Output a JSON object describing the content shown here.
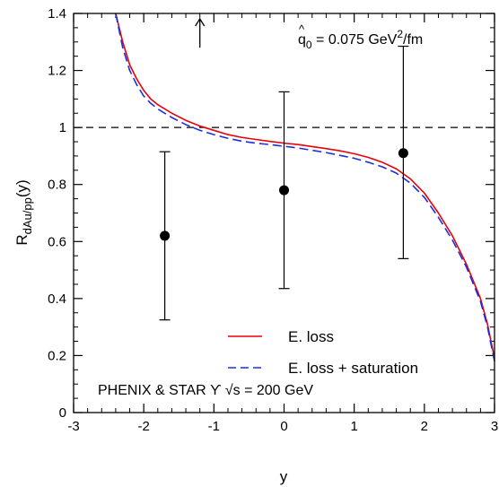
{
  "chart_data": {
    "type": "line",
    "xlabel": "y",
    "ylabel": "R",
    "ylabel_sub": "dAu/pp",
    "ylabel_suffix": "(y)",
    "xlim": [
      -3,
      3
    ],
    "ylim": [
      0,
      1.4
    ],
    "x_ticks": [
      -3,
      -2,
      -1,
      0,
      1,
      2,
      3
    ],
    "x_tick_labels": [
      "-3",
      "-2",
      "-1",
      "0",
      "1",
      "2",
      "3"
    ],
    "y_ticks": [
      0,
      0.2,
      0.4,
      0.6,
      0.8,
      1,
      1.2,
      1.4
    ],
    "y_tick_labels": [
      "0",
      "0.2",
      "0.4",
      "0.6",
      "0.8",
      "1",
      "1.2",
      "1.4"
    ],
    "grid": false,
    "reference_line": {
      "y": 1.0,
      "style": "dashed"
    },
    "series": [
      {
        "name": "E. loss",
        "color": "#e8000b",
        "style": "solid",
        "x": [
          -2.4,
          -2.3,
          -2.2,
          -2.1,
          -2.0,
          -1.9,
          -1.8,
          -1.6,
          -1.4,
          -1.2,
          -1.0,
          -0.8,
          -0.6,
          -0.4,
          -0.2,
          0.0,
          0.2,
          0.4,
          0.6,
          0.8,
          1.0,
          1.2,
          1.4,
          1.6,
          1.8,
          2.0,
          2.2,
          2.4,
          2.6,
          2.8,
          2.9,
          3.0
        ],
        "y": [
          1.4,
          1.3,
          1.22,
          1.17,
          1.13,
          1.1,
          1.08,
          1.05,
          1.025,
          1.005,
          0.99,
          0.975,
          0.965,
          0.958,
          0.951,
          0.945,
          0.94,
          0.933,
          0.926,
          0.918,
          0.908,
          0.895,
          0.878,
          0.855,
          0.82,
          0.77,
          0.7,
          0.62,
          0.52,
          0.4,
          0.31,
          0.19
        ]
      },
      {
        "name": "E. loss + saturation",
        "color": "#1a2fe0",
        "style": "dashed",
        "x": [
          -2.4,
          -2.3,
          -2.2,
          -2.1,
          -2.0,
          -1.9,
          -1.8,
          -1.6,
          -1.4,
          -1.2,
          -1.0,
          -0.8,
          -0.6,
          -0.4,
          -0.2,
          0.0,
          0.2,
          0.4,
          0.6,
          0.8,
          1.0,
          1.2,
          1.4,
          1.6,
          1.8,
          2.0,
          2.2,
          2.4,
          2.6,
          2.8,
          2.9,
          3.0
        ],
        "y": [
          1.4,
          1.28,
          1.2,
          1.15,
          1.11,
          1.085,
          1.065,
          1.035,
          1.01,
          0.99,
          0.975,
          0.962,
          0.952,
          0.945,
          0.94,
          0.934,
          0.928,
          0.92,
          0.912,
          0.902,
          0.892,
          0.878,
          0.862,
          0.84,
          0.805,
          0.755,
          0.685,
          0.605,
          0.51,
          0.39,
          0.3,
          0.18
        ]
      }
    ],
    "data_points": {
      "x": [
        -1.7,
        0.0,
        1.7
      ],
      "y": [
        0.62,
        0.78,
        0.91
      ],
      "err_low": [
        0.325,
        0.435,
        0.54
      ],
      "err_high": [
        0.915,
        1.125,
        1.285
      ]
    },
    "arrow_marker": {
      "x": -1.2,
      "y_from": 1.28,
      "y_to": 1.4
    },
    "annotations": {
      "qhat_symbol": "q",
      "qhat_sub": "0",
      "qhat_text": " = 0.075 GeV",
      "qhat_sup": "2",
      "qhat_unit": "/fm",
      "experiment": "PHENIX & STAR  ϒ √s = 200 GeV"
    },
    "legend": {
      "placement": "lower-right",
      "entries": [
        "E. loss",
        "E. loss + saturation"
      ]
    }
  }
}
